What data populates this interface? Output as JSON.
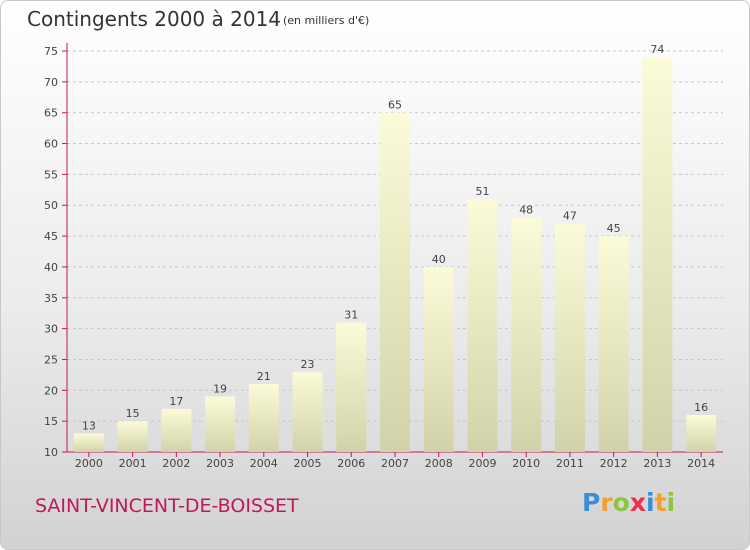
{
  "header": {
    "title": "Contingents 2000 à 2014",
    "subtitle": "(en milliers d'€)"
  },
  "footer": {
    "commune": "SAINT-VINCENT-DE-BOISSET",
    "logo_letters": [
      {
        "ch": "P",
        "color": "#3a8ed8"
      },
      {
        "ch": "r",
        "color": "#f3a12a"
      },
      {
        "ch": "o",
        "color": "#8cc63f"
      },
      {
        "ch": "x",
        "color": "#e8334a"
      },
      {
        "ch": "i",
        "color": "#3a8ed8"
      },
      {
        "ch": "t",
        "color": "#f3a12a"
      },
      {
        "ch": "i",
        "color": "#8cc63f"
      }
    ]
  },
  "chart_data": {
    "type": "bar",
    "title": "Contingents 2000 à 2014",
    "subtitle": "(en milliers d'€)",
    "categories": [
      "2000",
      "2001",
      "2002",
      "2003",
      "2004",
      "2005",
      "2006",
      "2007",
      "2008",
      "2009",
      "2010",
      "2011",
      "2012",
      "2013",
      "2014"
    ],
    "values": [
      13,
      15,
      17,
      19,
      21,
      23,
      31,
      65,
      40,
      51,
      48,
      47,
      45,
      74,
      16
    ],
    "ylim": [
      10,
      75
    ],
    "yticks": [
      10,
      15,
      20,
      25,
      30,
      35,
      40,
      45,
      50,
      55,
      60,
      65,
      70,
      75
    ],
    "grid": true,
    "colors": {
      "bar_top": "#fbfbd8",
      "bar_bottom": "#d2d2aa",
      "axis_red": "#c0185a",
      "grid": "#c8c8c8",
      "text": "#444444"
    }
  }
}
